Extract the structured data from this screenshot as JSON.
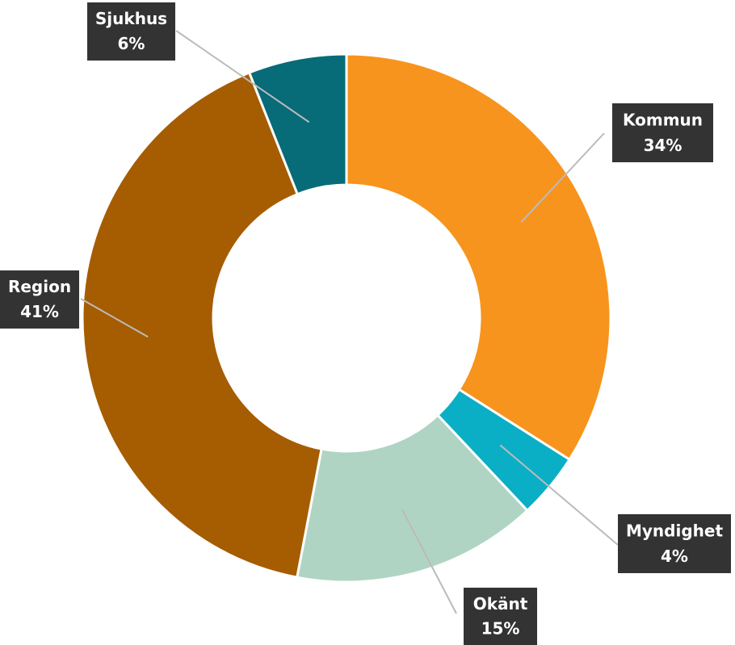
{
  "chart_data": {
    "type": "pie",
    "categories": [
      "Kommun",
      "Myndighet",
      "Okänt",
      "Region",
      "Sjukhus"
    ],
    "values": [
      34,
      4,
      15,
      41,
      6
    ],
    "value_labels": [
      "34%",
      "4%",
      "15%",
      "41%",
      "6%"
    ],
    "colors": [
      "#f7941d",
      "#0aafc6",
      "#b0d4c4",
      "#a65c00",
      "#086b78"
    ]
  }
}
